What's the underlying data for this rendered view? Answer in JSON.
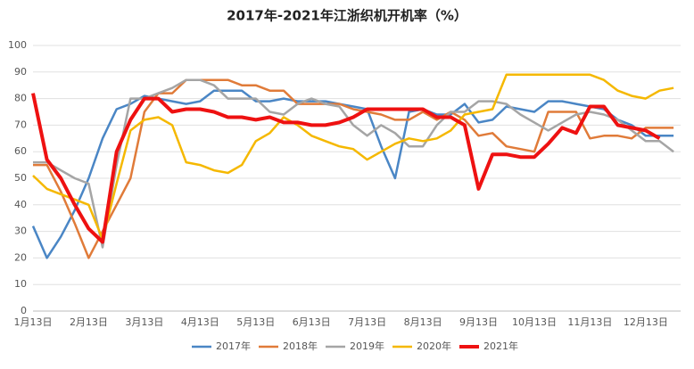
{
  "chart_data": {
    "type": "line",
    "title": "2017年-2021年江浙织机开机率（%）",
    "categories": [
      "1月13日",
      null,
      null,
      null,
      "2月13日",
      null,
      null,
      null,
      "3月13日",
      null,
      null,
      null,
      "4月13日",
      null,
      null,
      null,
      "5月13日",
      null,
      null,
      null,
      "6月13日",
      null,
      null,
      null,
      "7月13日",
      null,
      null,
      null,
      "8月13日",
      null,
      null,
      null,
      "9月13日",
      null,
      null,
      null,
      "10月13日",
      null,
      null,
      null,
      "11月13日",
      null,
      null,
      null,
      "12月13日",
      null,
      null
    ],
    "series": [
      {
        "name": "2017年",
        "color": "#4a86c5",
        "width": 2.5,
        "values": [
          32,
          20,
          28,
          38,
          50,
          65,
          76,
          78,
          81,
          80,
          79,
          78,
          79,
          83,
          83,
          83,
          79,
          79,
          80,
          79,
          79,
          79,
          78,
          77,
          76,
          62,
          50,
          75,
          76,
          74,
          74,
          78,
          71,
          72,
          77,
          76,
          75,
          79,
          79,
          78,
          77,
          76,
          72,
          70,
          66,
          66,
          66
        ]
      },
      {
        "name": "2018年",
        "color": "#e07b39",
        "width": 2.5,
        "values": [
          55,
          55,
          45,
          33,
          20,
          30,
          40,
          50,
          75,
          82,
          82,
          87,
          87,
          87,
          87,
          85,
          85,
          83,
          83,
          78,
          78,
          78,
          78,
          76,
          75,
          74,
          72,
          72,
          75,
          72,
          75,
          72,
          66,
          67,
          62,
          61,
          60,
          75,
          75,
          75,
          65,
          66,
          66,
          65,
          69,
          69,
          69
        ]
      },
      {
        "name": "2019年",
        "color": "#a5a5a5",
        "width": 2.5,
        "values": [
          56,
          56,
          53,
          50,
          48,
          24,
          55,
          80,
          80,
          82,
          84,
          87,
          87,
          85,
          80,
          80,
          80,
          75,
          74,
          78,
          80,
          78,
          77,
          70,
          66,
          70,
          67,
          62,
          62,
          70,
          75,
          75,
          79,
          79,
          78,
          74,
          71,
          68,
          71,
          74,
          75,
          74,
          72,
          68,
          64,
          64,
          60
        ]
      },
      {
        "name": "2020年",
        "color": "#f5b800",
        "width": 2.5,
        "values": [
          51,
          46,
          44,
          42,
          40,
          27,
          48,
          68,
          72,
          73,
          70,
          56,
          55,
          53,
          52,
          55,
          64,
          67,
          73,
          70,
          66,
          64,
          62,
          61,
          57,
          60,
          63,
          65,
          64,
          65,
          68,
          74,
          75,
          76,
          89,
          89,
          89,
          89,
          89,
          89,
          89,
          87,
          83,
          81,
          80,
          83,
          84
        ]
      },
      {
        "name": "2021年",
        "color": "#ee1111",
        "width": 4,
        "values": [
          82,
          57,
          50,
          40,
          31,
          26,
          60,
          72,
          80,
          80,
          75,
          76,
          76,
          75,
          73,
          73,
          72,
          73,
          71,
          71,
          70,
          70,
          71,
          73,
          76,
          76,
          76,
          76,
          76,
          73,
          73,
          70,
          46,
          59,
          59,
          58,
          58,
          63,
          69,
          67,
          77,
          77,
          70,
          69,
          68,
          65,
          null
        ]
      }
    ],
    "ylim": [
      0,
      100
    ],
    "yticks": [
      0,
      10,
      20,
      30,
      40,
      50,
      60,
      70,
      80,
      90,
      100
    ],
    "grid": true,
    "legend": "bottom"
  }
}
